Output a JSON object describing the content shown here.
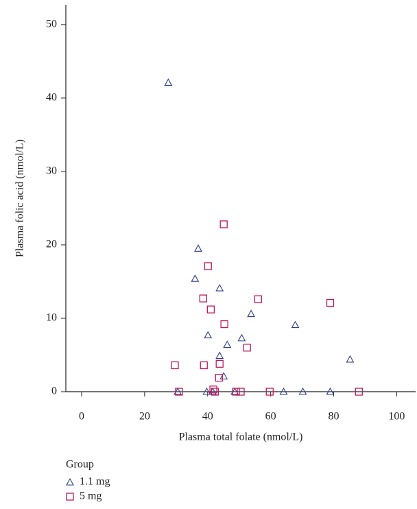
{
  "chart_data": {
    "type": "scatter",
    "xlabel": "Plasma total folate (nmol/L)",
    "ylabel": "Plasma folic acid (nmol/L)",
    "legend_title": "Group",
    "xlim": [
      -5,
      106
    ],
    "ylim": [
      0,
      52.7
    ],
    "xticks": [
      0,
      20,
      40,
      60,
      80,
      100
    ],
    "yticks": [
      0,
      10,
      20,
      30,
      40,
      50
    ],
    "series": [
      {
        "name": "1.1 mg",
        "color": "#2b3f8f",
        "marker": "triangle",
        "x": [
          27.5,
          37.0,
          36.0,
          43.8,
          53.8,
          67.8,
          40.1,
          46.2,
          50.8,
          43.8,
          45.1,
          85.2,
          30.5,
          39.7,
          41.6,
          48.6,
          64.1,
          70.2,
          78.9
        ],
        "values": [
          42.1,
          19.5,
          15.4,
          14.1,
          10.6,
          9.1,
          7.7,
          6.4,
          7.3,
          4.9,
          2.1,
          4.4,
          0,
          0,
          0,
          0,
          0,
          0,
          0
        ]
      },
      {
        "name": "5 mg",
        "color": "#c2185b",
        "marker": "square",
        "x": [
          45.1,
          40.1,
          38.6,
          41.0,
          56.0,
          78.9,
          45.3,
          52.5,
          29.6,
          38.8,
          43.8,
          43.6,
          41.8,
          30.9,
          42.3,
          49.0,
          50.5,
          59.7,
          88.0
        ],
        "values": [
          22.8,
          17.1,
          12.7,
          11.2,
          12.6,
          12.1,
          9.2,
          6.0,
          3.6,
          3.6,
          3.8,
          1.9,
          0.3,
          0,
          0,
          0,
          0,
          0,
          0
        ]
      }
    ]
  }
}
